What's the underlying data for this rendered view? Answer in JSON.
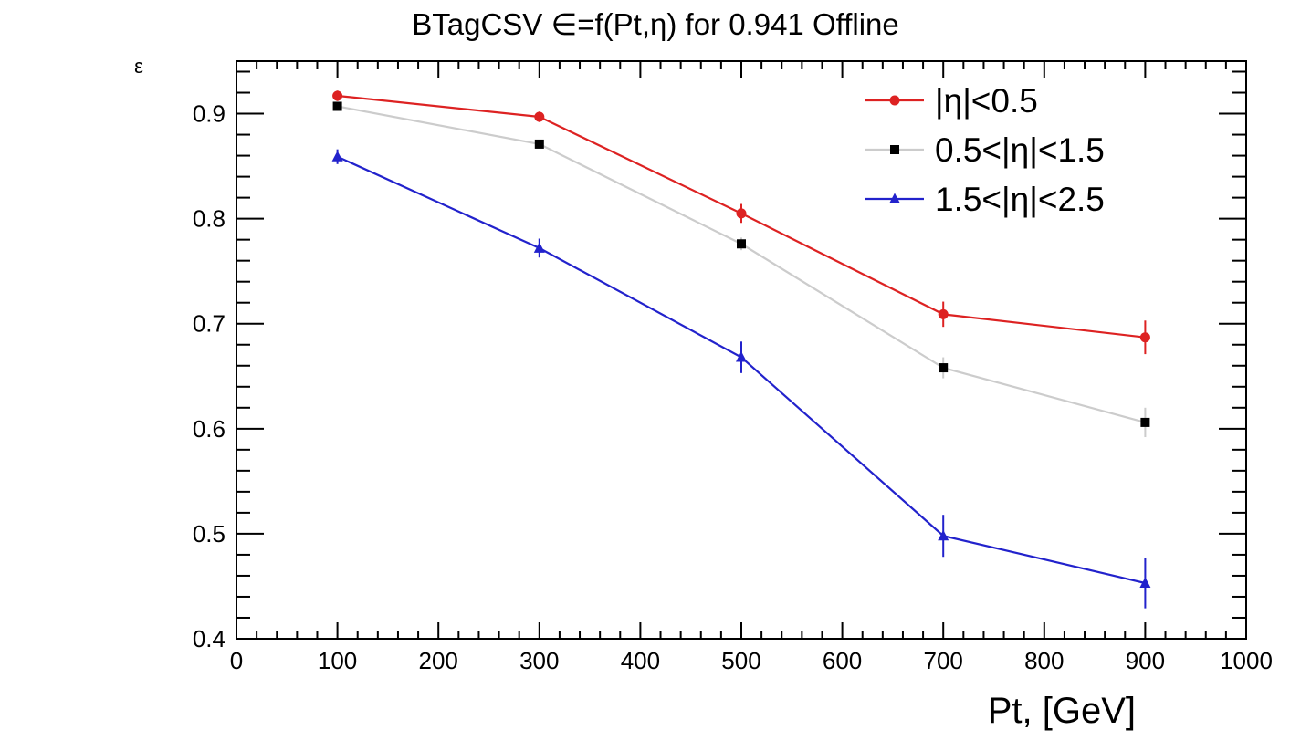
{
  "chart_data": {
    "type": "line",
    "title": "BTagCSV ∈=f(Pt,η) for 0.941 Offline",
    "xlabel": "Pt, [GeV]",
    "ylabel": "ε",
    "xlim": [
      0,
      1000
    ],
    "ylim": [
      0.4,
      0.95
    ],
    "x_ticks": [
      "0",
      "100",
      "200",
      "300",
      "400",
      "500",
      "600",
      "700",
      "800",
      "900",
      "1000"
    ],
    "y_ticks": [
      "0.4",
      "0.5",
      "0.6",
      "0.7",
      "0.8",
      "0.9"
    ],
    "grid": false,
    "legend_position": "top-right",
    "x": [
      100,
      300,
      500,
      700,
      900
    ],
    "series": [
      {
        "name": "|η|<0.5",
        "color": "#dd2222",
        "marker": "circle",
        "values": [
          0.917,
          0.897,
          0.805,
          0.709,
          0.687
        ],
        "errors": [
          0.005,
          0.005,
          0.009,
          0.012,
          0.016
        ]
      },
      {
        "name": "0.5<|η|<1.5",
        "color": "#cccccc",
        "marker_color": "#000000",
        "marker": "square",
        "values": [
          0.907,
          0.871,
          0.776,
          0.658,
          0.606
        ],
        "errors": [
          0.004,
          0.004,
          0.006,
          0.01,
          0.014
        ]
      },
      {
        "name": "1.5<|η|<2.5",
        "color": "#2222cc",
        "marker": "triangle",
        "values": [
          0.859,
          0.772,
          0.668,
          0.498,
          0.453
        ],
        "errors": [
          0.007,
          0.009,
          0.015,
          0.02,
          0.024
        ]
      }
    ]
  }
}
